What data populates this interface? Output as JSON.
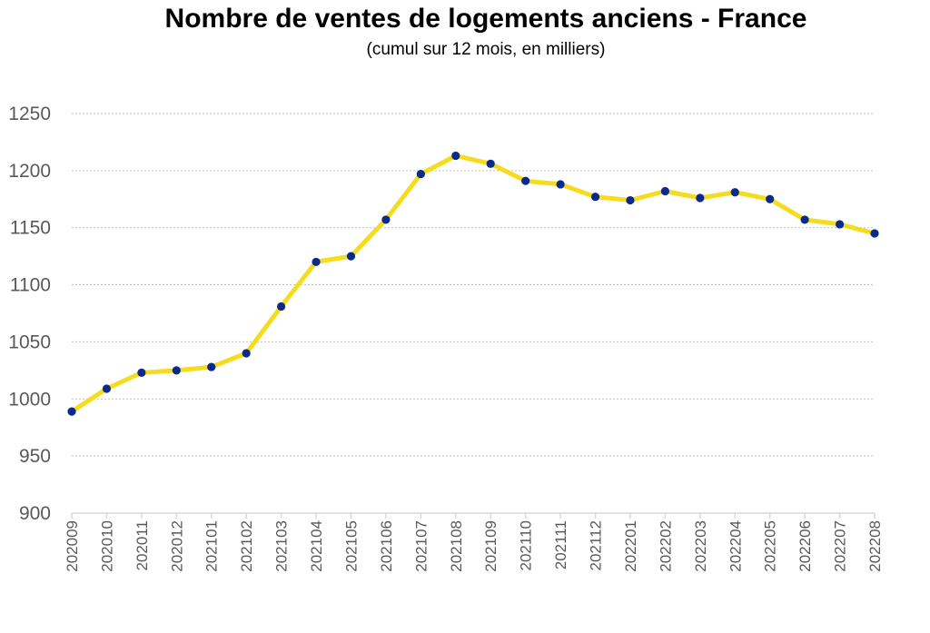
{
  "chart_data": {
    "type": "line",
    "title": "Nombre de ventes de logements anciens - France",
    "subtitle": "(cumul sur 12 mois, en milliers)",
    "xlabel": "",
    "ylabel": "",
    "ylim": [
      900,
      1250
    ],
    "yticks": [
      900,
      950,
      1000,
      1050,
      1100,
      1150,
      1200,
      1250
    ],
    "grid": true,
    "legend": "none",
    "categories": [
      "202009",
      "202010",
      "202011",
      "202012",
      "202101",
      "202102",
      "202103",
      "202104",
      "202105",
      "202106",
      "202107",
      "202108",
      "202109",
      "202110",
      "202111",
      "202112",
      "202201",
      "202202",
      "202203",
      "202204",
      "202205",
      "202206",
      "202207",
      "202208"
    ],
    "series": [
      {
        "values": [
          989,
          1009,
          1023,
          1025,
          1028,
          1040,
          1081,
          1120,
          1125,
          1157,
          1197,
          1213,
          1206,
          1191,
          1188,
          1177,
          1174,
          1182,
          1176,
          1181,
          1175,
          1157,
          1153,
          1145
        ],
        "line_color": "#F5DC1E",
        "marker_color": "#0A2A8C"
      }
    ],
    "grid_color": "#BFBFBF",
    "axis_color": "#D9D9D9"
  }
}
